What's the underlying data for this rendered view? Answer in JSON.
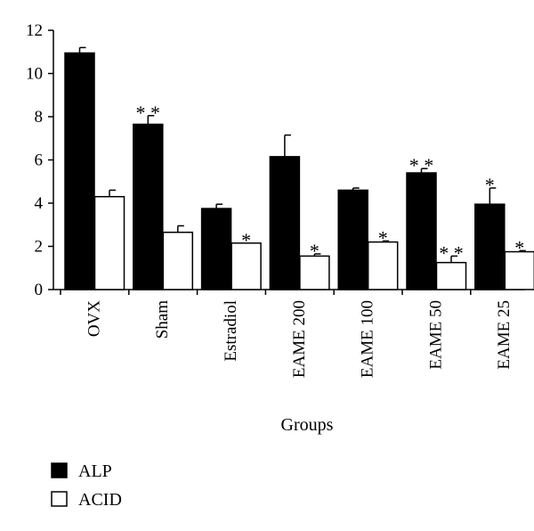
{
  "chart_data": {
    "type": "bar",
    "title": "",
    "xlabel": "Groups",
    "ylabel": "",
    "ylim": [
      0,
      12
    ],
    "yticks": [
      0,
      2,
      4,
      6,
      8,
      10,
      12
    ],
    "categories": [
      "OVX",
      "Sham",
      "Estradiol",
      "EAME 200",
      "EAME 100",
      "EAME 50",
      "EAME 25"
    ],
    "series": [
      {
        "name": "ALP",
        "color": "#000000",
        "values": [
          10.95,
          7.65,
          3.75,
          6.15,
          4.6,
          5.4,
          3.95
        ],
        "errors": [
          0.25,
          0.4,
          0.2,
          1.0,
          0.1,
          0.2,
          0.75
        ],
        "significance": [
          "",
          "**",
          "",
          "",
          "",
          "**",
          "*"
        ]
      },
      {
        "name": "ACID",
        "color": "#ffffff",
        "values": [
          4.3,
          2.65,
          2.15,
          1.55,
          2.2,
          1.25,
          1.75
        ],
        "errors": [
          0.3,
          0.3,
          0.0,
          0.1,
          0.05,
          0.3,
          0.05
        ],
        "significance": [
          "",
          "",
          "*",
          "*",
          "*",
          "**",
          "*"
        ]
      }
    ],
    "legend_position": "bottom-left",
    "grid": false
  }
}
